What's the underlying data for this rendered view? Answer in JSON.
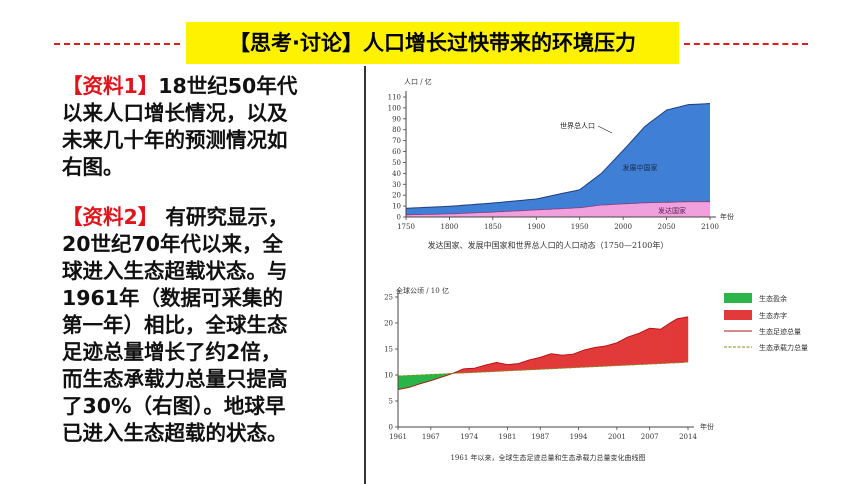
{
  "title": "【思考·讨论】人口增长过快带来的环境压力",
  "material1": {
    "label": "【资料1】",
    "lines": [
      "18世纪50年代",
      "以来人口增长情况，以及",
      "未来几十年的预测情况如",
      "右图。"
    ]
  },
  "material2": {
    "label": "【资料2】",
    "lines": [
      " 有研究显示，",
      "20世纪70年代以来，全",
      "球进入生态超载状态。与",
      "1961年（数据可采集的",
      "第一年）相比，全球生态",
      "足迹总量增长了约2倍，",
      "而生态承载力总量只提高",
      "了30%（右图）。地球早",
      "已进入生态超载的状态。"
    ]
  },
  "colors": {
    "accent_red": "#e0151b",
    "banner_yellow": "#fff200",
    "world_blue": "#3f7fd6",
    "developed_pink": "#f0a0dc",
    "surplus_green": "#2bb54a",
    "deficit_red": "#e23a3a"
  },
  "chart_data": [
    {
      "type": "area",
      "title": "",
      "ylabel": "人口 / 亿",
      "xlabel": "年份",
      "caption": "发达国家、发展中国家和世界总人口的人口动态（1750—2100年）",
      "ylim": [
        0,
        110
      ],
      "yticks": [
        0,
        10,
        20,
        30,
        40,
        50,
        60,
        70,
        80,
        90,
        100,
        110
      ],
      "xticks": [
        1750,
        1800,
        1850,
        1900,
        1950,
        2000,
        2050,
        2100
      ],
      "x": [
        1750,
        1800,
        1850,
        1900,
        1950,
        1975,
        2000,
        2025,
        2050,
        2075,
        2100
      ],
      "series": [
        {
          "name": "世界总人口",
          "values": [
            8,
            9.8,
            12.8,
            16.5,
            25,
            40,
            61,
            83,
            98,
            103,
            104
          ]
        },
        {
          "name": "发达国家",
          "values": [
            2,
            2.8,
            4.5,
            6.5,
            8.5,
            11,
            12,
            13,
            13.5,
            14,
            14
          ]
        }
      ],
      "area_labels": [
        "世界总人口",
        "发展中国家",
        "发达国家"
      ],
      "grid": false
    },
    {
      "type": "line",
      "title": "",
      "ylabel": "全球公顷 / 10 亿",
      "xlabel": "年份",
      "caption": "1961 年以来，全球生态足迹总量和生态承载力总量变化曲线图",
      "ylim": [
        0,
        25
      ],
      "yticks": [
        0,
        5,
        10,
        15,
        20,
        25
      ],
      "xticks": [
        1961,
        1967,
        1974,
        1981,
        1987,
        1994,
        2001,
        2007,
        2014
      ],
      "x": [
        1961,
        1963,
        1965,
        1967,
        1969,
        1971,
        1973,
        1975,
        1977,
        1979,
        1981,
        1983,
        1985,
        1987,
        1989,
        1991,
        1993,
        1995,
        1997,
        1999,
        2001,
        2003,
        2005,
        2007,
        2009,
        2011,
        2012,
        2013,
        2014
      ],
      "series": [
        {
          "name": "生态足迹总量",
          "values": [
            7.2,
            7.6,
            8.3,
            8.9,
            9.6,
            10.3,
            11.2,
            11.3,
            11.9,
            12.4,
            12.0,
            12.2,
            12.9,
            13.4,
            14.1,
            13.8,
            14.0,
            14.8,
            15.3,
            15.6,
            16.2,
            17.3,
            18.0,
            19.0,
            18.8,
            20.2,
            20.8,
            21.0,
            21.2
          ]
        },
        {
          "name": "生态承载力总量",
          "values": [
            9.8,
            9.9,
            10.0,
            10.1,
            10.2,
            10.3,
            10.4,
            10.5,
            10.6,
            10.7,
            10.8,
            10.9,
            11.0,
            11.1,
            11.2,
            11.3,
            11.4,
            11.5,
            11.6,
            11.7,
            11.8,
            11.9,
            12.0,
            12.1,
            12.2,
            12.3,
            12.35,
            12.4,
            12.5
          ]
        }
      ],
      "legend": [
        "生态盈余",
        "生态赤字",
        "生态足迹总量",
        "生态承载力总量"
      ],
      "legend_position": "right",
      "grid": false
    }
  ]
}
